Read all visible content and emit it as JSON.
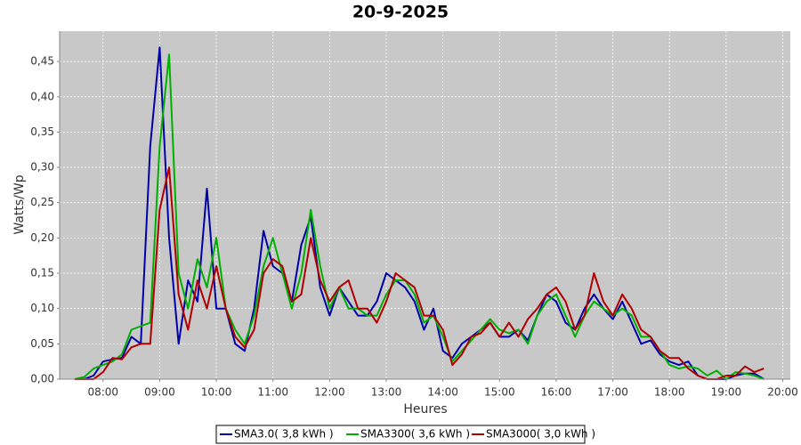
{
  "chart_data": {
    "type": "line",
    "title": "20-9-2025",
    "x_label": "Heures",
    "y_label": "Watts/Wp",
    "x": [
      450,
      460,
      470,
      480,
      490,
      500,
      510,
      520,
      530,
      540,
      550,
      560,
      570,
      580,
      590,
      600,
      610,
      620,
      630,
      640,
      650,
      660,
      670,
      680,
      690,
      700,
      710,
      720,
      730,
      740,
      750,
      760,
      770,
      780,
      790,
      800,
      810,
      820,
      830,
      840,
      850,
      860,
      870,
      880,
      890,
      900,
      910,
      920,
      930,
      940,
      950,
      960,
      970,
      980,
      990,
      1000,
      1010,
      1020,
      1030,
      1040,
      1050,
      1060,
      1070,
      1080,
      1090,
      1100,
      1110,
      1120,
      1130,
      1140,
      1150,
      1160,
      1170,
      1180
    ],
    "series": [
      {
        "name": "SMA3.0( 3,8 kWh )",
        "color": "#0000aa",
        "values": [
          0,
          0,
          0.005,
          0.025,
          0.028,
          0.03,
          0.06,
          0.05,
          0.33,
          0.47,
          0.2,
          0.05,
          0.14,
          0.11,
          0.27,
          0.1,
          0.1,
          0.05,
          0.04,
          0.1,
          0.21,
          0.16,
          0.15,
          0.11,
          0.19,
          0.23,
          0.13,
          0.09,
          0.13,
          0.11,
          0.09,
          0.09,
          0.11,
          0.15,
          0.14,
          0.13,
          0.11,
          0.07,
          0.1,
          0.04,
          0.03,
          0.05,
          0.06,
          0.07,
          0.08,
          0.06,
          0.06,
          0.07,
          0.055,
          0.09,
          0.12,
          0.11,
          0.08,
          0.07,
          0.1,
          0.12,
          0.1,
          0.085,
          0.11,
          0.08,
          0.05,
          0.055,
          0.035,
          0.025,
          0.02,
          0.025,
          0.005,
          0,
          0,
          0,
          0.005,
          0.008,
          0.008,
          0
        ]
      },
      {
        "name": "SMA3300( 3,6 kWh )",
        "color": "#00b000",
        "values": [
          0,
          0.003,
          0.015,
          0.02,
          0.025,
          0.035,
          0.07,
          0.075,
          0.08,
          0.33,
          0.46,
          0.15,
          0.1,
          0.17,
          0.13,
          0.2,
          0.1,
          0.07,
          0.05,
          0.09,
          0.16,
          0.2,
          0.15,
          0.1,
          0.15,
          0.24,
          0.16,
          0.1,
          0.13,
          0.1,
          0.1,
          0.09,
          0.09,
          0.12,
          0.14,
          0.14,
          0.12,
          0.08,
          0.09,
          0.06,
          0.025,
          0.04,
          0.055,
          0.07,
          0.085,
          0.07,
          0.065,
          0.07,
          0.05,
          0.09,
          0.11,
          0.12,
          0.09,
          0.06,
          0.09,
          0.11,
          0.1,
          0.09,
          0.1,
          0.09,
          0.06,
          0.06,
          0.04,
          0.02,
          0.015,
          0.018,
          0.015,
          0.005,
          0.012,
          0,
          0.01,
          0.008,
          0.005,
          0
        ]
      },
      {
        "name": "SMA3000( 3,0 kWh )",
        "color": "#b00000",
        "values": [
          0,
          0,
          0,
          0.01,
          0.03,
          0.028,
          0.045,
          0.05,
          0.05,
          0.24,
          0.3,
          0.12,
          0.07,
          0.14,
          0.1,
          0.16,
          0.1,
          0.06,
          0.045,
          0.07,
          0.15,
          0.17,
          0.16,
          0.11,
          0.12,
          0.2,
          0.14,
          0.11,
          0.13,
          0.14,
          0.1,
          0.1,
          0.08,
          0.11,
          0.15,
          0.14,
          0.13,
          0.09,
          0.09,
          0.07,
          0.02,
          0.035,
          0.06,
          0.065,
          0.08,
          0.06,
          0.08,
          0.06,
          0.085,
          0.1,
          0.12,
          0.13,
          0.11,
          0.07,
          0.09,
          0.15,
          0.11,
          0.09,
          0.12,
          0.1,
          0.07,
          0.06,
          0.04,
          0.03,
          0.03,
          0.015,
          0.005,
          0,
          0,
          0.005,
          0.005,
          0.018,
          0.01,
          0.015
        ]
      }
    ],
    "xlim": [
      434,
      1208
    ],
    "xticks": [
      {
        "value": 480,
        "label": "08:00"
      },
      {
        "value": 540,
        "label": "09:00"
      },
      {
        "value": 600,
        "label": "10:00"
      },
      {
        "value": 660,
        "label": "11:00"
      },
      {
        "value": 720,
        "label": "12:00"
      },
      {
        "value": 780,
        "label": "13:00"
      },
      {
        "value": 840,
        "label": "14:00"
      },
      {
        "value": 900,
        "label": "15:00"
      },
      {
        "value": 960,
        "label": "16:00"
      },
      {
        "value": 1020,
        "label": "17:00"
      },
      {
        "value": 1080,
        "label": "18:00"
      },
      {
        "value": 1140,
        "label": "19:00"
      },
      {
        "value": 1200,
        "label": "20:00"
      }
    ],
    "ylim": [
      0,
      0.493
    ],
    "yticks": [
      {
        "value": 0,
        "label": "0,00"
      },
      {
        "value": 0.05,
        "label": "0,05"
      },
      {
        "value": 0.1,
        "label": "0,10"
      },
      {
        "value": 0.15,
        "label": "0,15"
      },
      {
        "value": 0.2,
        "label": "0,20"
      },
      {
        "value": 0.25,
        "label": "0,25"
      },
      {
        "value": 0.3,
        "label": "0,30"
      },
      {
        "value": 0.35,
        "label": "0,35"
      },
      {
        "value": 0.4,
        "label": "0,40"
      },
      {
        "value": 0.45,
        "label": "0,45"
      }
    ],
    "grid": true
  }
}
